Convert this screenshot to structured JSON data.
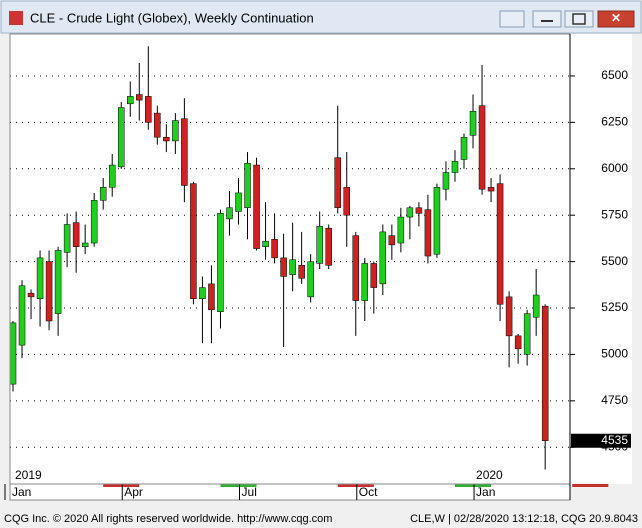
{
  "title": "CLE - Crude Light (Globex), Weekly Continuation",
  "footer_left": "CQG Inc. © 2020 All rights reserved worldwide. http://www.cqg.com",
  "footer_right": "CLE,W | 02/28/2020 13:12:18, CQG 20.9.8043",
  "chart_data": {
    "type": "candlestick",
    "up_color": "#22cc22",
    "down_color": "#cc2222",
    "ylim": [
      4302,
      6726
    ],
    "yticks": [
      4500,
      4750,
      5000,
      5250,
      5500,
      5750,
      6000,
      6250,
      6500
    ],
    "grid": true,
    "x_labels": [
      {
        "label": "Jan",
        "index": 0
      },
      {
        "label": "Apr",
        "index": 13
      },
      {
        "label": "Jul",
        "index": 26
      },
      {
        "label": "Oct",
        "index": 39
      },
      {
        "label": "Jan",
        "index": 52
      }
    ],
    "year_labels": [
      {
        "label": "2019",
        "index": 0
      },
      {
        "label": "2020",
        "index": 52
      }
    ],
    "open": [
      4840,
      5050,
      5330,
      5300,
      5500,
      5220,
      5550,
      5710,
      5580,
      5600,
      5830,
      5900,
      6010,
      6350,
      6400,
      6390,
      6300,
      6170,
      6150,
      6270,
      5920,
      5300,
      5380,
      5230,
      5730,
      5770,
      5790,
      6020,
      5580,
      5620,
      5520,
      5430,
      5480,
      5310,
      5490,
      5680,
      6060,
      5900,
      5640,
      5290,
      5490,
      5380,
      5640,
      5600,
      5740,
      5790,
      5780,
      5540,
      5890,
      5980,
      6050,
      6180,
      6340,
      5900,
      5920,
      5310,
      5100,
      5000,
      5200,
      5260
    ],
    "high": [
      5180,
      5400,
      5350,
      5560,
      5560,
      5580,
      5760,
      5770,
      5700,
      5870,
      5950,
      6080,
      6360,
      6470,
      6570,
      6660,
      6340,
      6240,
      6300,
      6380,
      5930,
      5420,
      5480,
      5780,
      5880,
      5950,
      6090,
      6060,
      5820,
      5760,
      5650,
      5710,
      5660,
      5540,
      5770,
      5700,
      6340,
      6090,
      5660,
      5520,
      5500,
      5700,
      5700,
      5790,
      5800,
      5820,
      5860,
      5920,
      6040,
      6100,
      6190,
      6400,
      6560,
      5950,
      5970,
      5340,
      5110,
      5240,
      5460,
      5270
    ],
    "low": [
      4800,
      4980,
      5190,
      5150,
      5130,
      5100,
      5470,
      5440,
      5540,
      5580,
      5780,
      5850,
      6000,
      6280,
      6260,
      6210,
      6130,
      6090,
      6080,
      5820,
      5270,
      5060,
      5060,
      5140,
      5640,
      5700,
      5620,
      5560,
      5510,
      5490,
      5040,
      5340,
      5380,
      5280,
      5460,
      5460,
      5760,
      5580,
      5100,
      5180,
      5220,
      5320,
      5510,
      5550,
      5620,
      5690,
      5490,
      5520,
      5830,
      5930,
      6000,
      6110,
      5860,
      5820,
      5180,
      4930,
      4950,
      4940,
      5100,
      4380
    ],
    "close": [
      5170,
      5370,
      5310,
      5520,
      5180,
      5560,
      5700,
      5580,
      5600,
      5830,
      5900,
      6020,
      6330,
      6390,
      6370,
      6250,
      6170,
      6150,
      6260,
      5910,
      5300,
      5360,
      5240,
      5760,
      5790,
      5870,
      6030,
      5570,
      5610,
      5520,
      5420,
      5510,
      5410,
      5500,
      5690,
      5480,
      5790,
      5750,
      5290,
      5490,
      5360,
      5660,
      5590,
      5740,
      5790,
      5760,
      5530,
      5900,
      5980,
      6040,
      6170,
      6310,
      5890,
      5880,
      5270,
      5100,
      5030,
      5220,
      5320,
      4535
    ]
  }
}
